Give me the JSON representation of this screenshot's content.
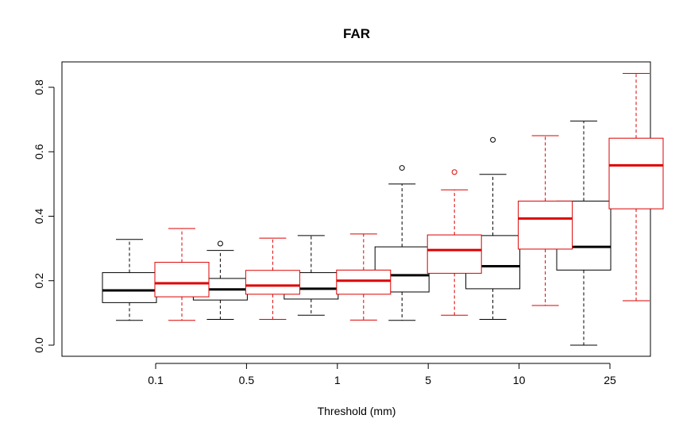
{
  "chart_data": {
    "type": "box",
    "title": "FAR",
    "xlabel": "Threshold (mm)",
    "ylabel": "",
    "ylim": [
      -0.03,
      0.86
    ],
    "yticks": [
      0.0,
      0.2,
      0.4,
      0.6,
      0.8
    ],
    "ytick_labels": [
      "0.0",
      "0.2",
      "0.4",
      "0.6",
      "0.8"
    ],
    "categories": [
      "0.1",
      "0.5",
      "1",
      "5",
      "10",
      "25"
    ],
    "grid": false,
    "legend": "none",
    "series": [
      {
        "color": "#000000",
        "boxes": [
          {
            "min": 0.077,
            "q1": 0.132,
            "median": 0.17,
            "q3": 0.225,
            "max": 0.328,
            "outliers": []
          },
          {
            "min": 0.08,
            "q1": 0.14,
            "median": 0.173,
            "q3": 0.207,
            "max": 0.294,
            "outliers": [
              0.315
            ]
          },
          {
            "min": 0.093,
            "q1": 0.143,
            "median": 0.175,
            "q3": 0.225,
            "max": 0.34,
            "outliers": []
          },
          {
            "min": 0.077,
            "q1": 0.165,
            "median": 0.217,
            "q3": 0.305,
            "max": 0.5,
            "outliers": [
              0.55
            ]
          },
          {
            "min": 0.08,
            "q1": 0.175,
            "median": 0.245,
            "q3": 0.34,
            "max": 0.53,
            "outliers": [
              0.637
            ]
          },
          {
            "min": 0.0,
            "q1": 0.233,
            "median": 0.305,
            "q3": 0.447,
            "max": 0.695,
            "outliers": []
          }
        ]
      },
      {
        "color": "#dd0000",
        "boxes": [
          {
            "min": 0.077,
            "q1": 0.15,
            "median": 0.192,
            "q3": 0.257,
            "max": 0.362,
            "outliers": []
          },
          {
            "min": 0.08,
            "q1": 0.158,
            "median": 0.185,
            "q3": 0.232,
            "max": 0.332,
            "outliers": []
          },
          {
            "min": 0.078,
            "q1": 0.158,
            "median": 0.2,
            "q3": 0.233,
            "max": 0.345,
            "outliers": []
          },
          {
            "min": 0.093,
            "q1": 0.223,
            "median": 0.295,
            "q3": 0.342,
            "max": 0.482,
            "outliers": [
              0.537
            ]
          },
          {
            "min": 0.123,
            "q1": 0.298,
            "median": 0.393,
            "q3": 0.447,
            "max": 0.65,
            "outliers": []
          },
          {
            "min": 0.138,
            "q1": 0.423,
            "median": 0.558,
            "q3": 0.642,
            "max": 0.843,
            "outliers": []
          }
        ]
      }
    ]
  }
}
